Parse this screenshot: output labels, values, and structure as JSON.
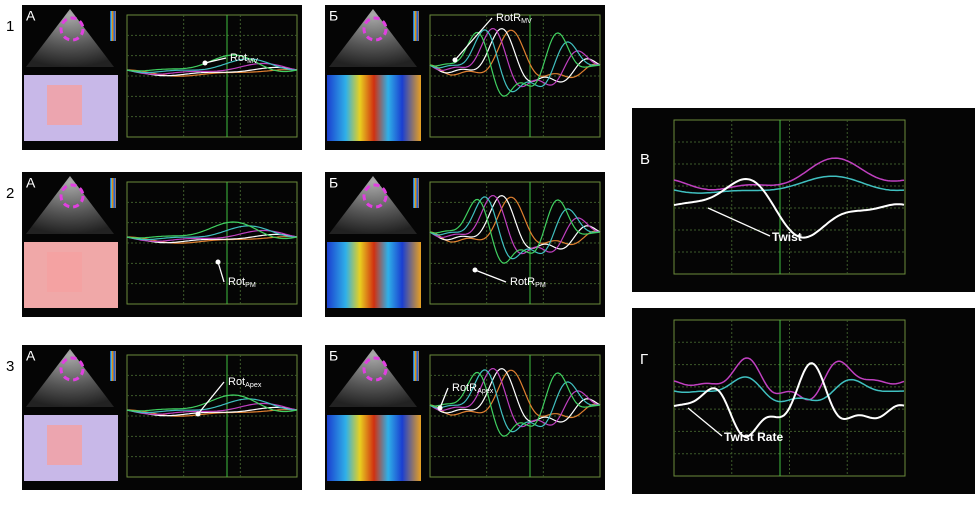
{
  "rows": [
    {
      "number": "1",
      "left": {
        "label": "А",
        "annotation": {
          "text": "Rot",
          "sub": "MV"
        }
      },
      "right": {
        "label": "Б",
        "annotation": {
          "text": "RotR",
          "sub": "MV"
        }
      }
    },
    {
      "number": "2",
      "left": {
        "label": "А",
        "annotation": {
          "text": "Rot",
          "sub": "PM"
        }
      },
      "right": {
        "label": "Б",
        "annotation": {
          "text": "RotR",
          "sub": "PM"
        }
      }
    },
    {
      "number": "3",
      "left": {
        "label": "А",
        "annotation": {
          "text": "Rot",
          "sub": "Apex"
        }
      },
      "right": {
        "label": "Б",
        "annotation": {
          "text": "RotR",
          "sub": "Apex"
        }
      }
    }
  ],
  "twist": {
    "label": "В",
    "annotation": "Twist"
  },
  "twist_rate": {
    "label": "Г",
    "annotation": "Twist Rate"
  }
}
